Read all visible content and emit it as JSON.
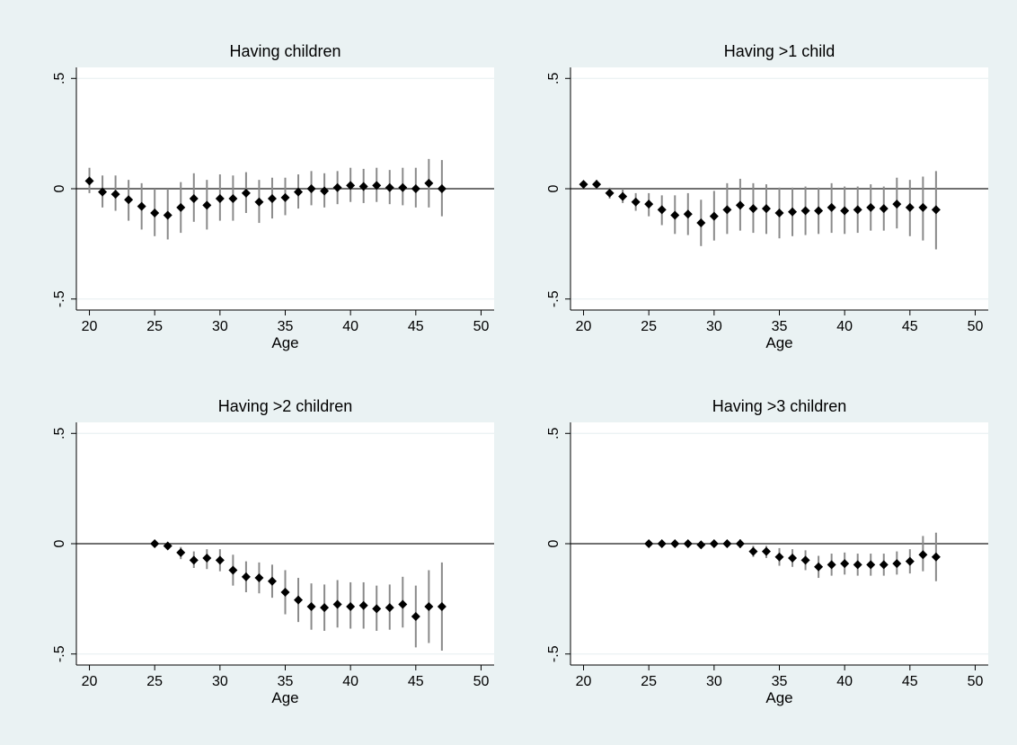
{
  "colors": {
    "background": "#eaf2f3",
    "plot_background": "#ffffff",
    "marker": "#000000",
    "ci_line": "#8a8a8a",
    "grid": "#e6eef0",
    "zero_line": "#1a1a1a"
  },
  "chart_data": [
    {
      "type": "scatter",
      "title": "Having children",
      "xlabel": "Age",
      "ylabel": "",
      "xlim": [
        19,
        51
      ],
      "ylim": [
        -0.55,
        0.55
      ],
      "xticks": [
        20,
        25,
        30,
        35,
        40,
        45,
        50
      ],
      "xtick_labels": [
        "20",
        "25",
        "30",
        "35",
        "40",
        "45",
        "50"
      ],
      "yticks": [
        -0.5,
        0,
        0.5
      ],
      "ytick_labels": [
        "-.5",
        "0",
        ".5"
      ],
      "grid": true,
      "reference_line": 0,
      "series": [
        {
          "x": [
            20,
            21,
            22,
            23,
            24,
            25,
            26,
            27,
            28,
            29,
            30,
            31,
            32,
            33,
            34,
            35,
            36,
            37,
            38,
            39,
            40,
            41,
            42,
            43,
            44,
            45,
            46,
            47
          ],
          "y": [
            0.035,
            -0.015,
            -0.025,
            -0.05,
            -0.08,
            -0.11,
            -0.12,
            -0.085,
            -0.045,
            -0.075,
            -0.045,
            -0.045,
            -0.02,
            -0.06,
            -0.045,
            -0.04,
            -0.015,
            0,
            -0.01,
            0.005,
            0.015,
            0.01,
            0.015,
            0.005,
            0.005,
            0,
            0.025,
            0
          ],
          "lower": [
            -0.02,
            -0.085,
            -0.1,
            -0.145,
            -0.185,
            -0.215,
            -0.23,
            -0.2,
            -0.15,
            -0.185,
            -0.145,
            -0.145,
            -0.11,
            -0.155,
            -0.135,
            -0.12,
            -0.09,
            -0.075,
            -0.085,
            -0.07,
            -0.06,
            -0.065,
            -0.06,
            -0.07,
            -0.075,
            -0.085,
            -0.085,
            -0.125
          ],
          "upper": [
            0.095,
            0.06,
            0.06,
            0.04,
            0.025,
            0,
            0,
            0.03,
            0.07,
            0.04,
            0.065,
            0.06,
            0.075,
            0.04,
            0.05,
            0.05,
            0.065,
            0.08,
            0.07,
            0.08,
            0.095,
            0.09,
            0.095,
            0.085,
            0.095,
            0.095,
            0.135,
            0.13
          ]
        }
      ]
    },
    {
      "type": "scatter",
      "title": "Having >1 child",
      "xlabel": "Age",
      "ylabel": "",
      "xlim": [
        19,
        51
      ],
      "ylim": [
        -0.55,
        0.55
      ],
      "xticks": [
        20,
        25,
        30,
        35,
        40,
        45,
        50
      ],
      "xtick_labels": [
        "20",
        "25",
        "30",
        "35",
        "40",
        "45",
        "50"
      ],
      "yticks": [
        -0.5,
        0,
        0.5
      ],
      "ytick_labels": [
        "-.5",
        "0",
        ".5"
      ],
      "grid": true,
      "reference_line": 0,
      "series": [
        {
          "x": [
            20,
            21,
            22,
            23,
            24,
            25,
            26,
            27,
            28,
            29,
            30,
            31,
            32,
            33,
            34,
            35,
            36,
            37,
            38,
            39,
            40,
            41,
            42,
            43,
            44,
            45,
            46,
            47
          ],
          "y": [
            0.02,
            0.02,
            -0.02,
            -0.035,
            -0.06,
            -0.07,
            -0.095,
            -0.12,
            -0.115,
            -0.155,
            -0.125,
            -0.095,
            -0.075,
            -0.09,
            -0.09,
            -0.11,
            -0.105,
            -0.1,
            -0.1,
            -0.085,
            -0.1,
            -0.095,
            -0.085,
            -0.09,
            -0.07,
            -0.085,
            -0.085,
            -0.095
          ],
          "lower": [
            0.005,
            0,
            -0.045,
            -0.065,
            -0.1,
            -0.125,
            -0.165,
            -0.205,
            -0.21,
            -0.26,
            -0.235,
            -0.205,
            -0.19,
            -0.2,
            -0.205,
            -0.225,
            -0.215,
            -0.21,
            -0.205,
            -0.2,
            -0.205,
            -0.2,
            -0.19,
            -0.19,
            -0.18,
            -0.215,
            -0.235,
            -0.275
          ],
          "upper": [
            0.035,
            0.04,
            0.005,
            0,
            -0.02,
            -0.02,
            -0.03,
            -0.03,
            -0.02,
            -0.05,
            -0.01,
            0.025,
            0.045,
            0.025,
            0.02,
            0.005,
            0.005,
            0.01,
            0.005,
            0.025,
            0.01,
            0.01,
            0.02,
            0.01,
            0.05,
            0.04,
            0.055,
            0.08
          ]
        }
      ]
    },
    {
      "type": "scatter",
      "title": "Having >2 children",
      "xlabel": "Age",
      "ylabel": "",
      "xlim": [
        19,
        51
      ],
      "ylim": [
        -0.55,
        0.55
      ],
      "xticks": [
        20,
        25,
        30,
        35,
        40,
        45,
        50
      ],
      "xtick_labels": [
        "20",
        "25",
        "30",
        "35",
        "40",
        "45",
        "50"
      ],
      "yticks": [
        -0.5,
        0,
        0.5
      ],
      "ytick_labels": [
        "-.5",
        "0",
        ".5"
      ],
      "grid": true,
      "reference_line": 0,
      "series": [
        {
          "x": [
            25,
            26,
            27,
            28,
            29,
            30,
            31,
            32,
            33,
            34,
            35,
            36,
            37,
            38,
            39,
            40,
            41,
            42,
            43,
            44,
            45,
            46,
            47
          ],
          "y": [
            0,
            -0.01,
            -0.04,
            -0.075,
            -0.065,
            -0.075,
            -0.12,
            -0.15,
            -0.155,
            -0.17,
            -0.22,
            -0.255,
            -0.285,
            -0.29,
            -0.275,
            -0.285,
            -0.28,
            -0.295,
            -0.29,
            -0.275,
            -0.33,
            -0.285,
            -0.285
          ],
          "lower": [
            -0.005,
            -0.025,
            -0.07,
            -0.11,
            -0.115,
            -0.125,
            -0.19,
            -0.22,
            -0.225,
            -0.245,
            -0.32,
            -0.355,
            -0.39,
            -0.395,
            -0.38,
            -0.385,
            -0.385,
            -0.395,
            -0.39,
            -0.38,
            -0.47,
            -0.45,
            -0.485
          ],
          "upper": [
            0.005,
            0.005,
            -0.015,
            -0.035,
            -0.025,
            -0.025,
            -0.05,
            -0.08,
            -0.085,
            -0.095,
            -0.12,
            -0.155,
            -0.18,
            -0.185,
            -0.165,
            -0.175,
            -0.175,
            -0.19,
            -0.185,
            -0.15,
            -0.19,
            -0.12,
            -0.085
          ]
        }
      ]
    },
    {
      "type": "scatter",
      "title": "Having >3 children",
      "xlabel": "Age",
      "ylabel": "",
      "xlim": [
        19,
        51
      ],
      "ylim": [
        -0.55,
        0.55
      ],
      "xticks": [
        20,
        25,
        30,
        35,
        40,
        45,
        50
      ],
      "xtick_labels": [
        "20",
        "25",
        "30",
        "35",
        "40",
        "45",
        "50"
      ],
      "yticks": [
        -0.5,
        0,
        0.5
      ],
      "ytick_labels": [
        "-.5",
        "0",
        ".5"
      ],
      "grid": true,
      "reference_line": 0,
      "series": [
        {
          "x": [
            25,
            26,
            27,
            28,
            29,
            30,
            31,
            32,
            33,
            34,
            35,
            36,
            37,
            38,
            39,
            40,
            41,
            42,
            43,
            44,
            45,
            46,
            47
          ],
          "y": [
            0,
            0,
            0,
            0,
            -0.005,
            0,
            0,
            0,
            -0.035,
            -0.035,
            -0.06,
            -0.065,
            -0.075,
            -0.105,
            -0.095,
            -0.09,
            -0.095,
            -0.095,
            -0.095,
            -0.09,
            -0.08,
            -0.05,
            -0.06
          ],
          "lower": [
            -0.005,
            -0.005,
            -0.005,
            -0.005,
            -0.01,
            -0.01,
            -0.01,
            -0.02,
            -0.06,
            -0.065,
            -0.1,
            -0.105,
            -0.12,
            -0.155,
            -0.145,
            -0.14,
            -0.145,
            -0.145,
            -0.145,
            -0.14,
            -0.135,
            -0.125,
            -0.17
          ],
          "upper": [
            0.005,
            0.005,
            0.005,
            0.005,
            0.005,
            0.005,
            0.01,
            0.02,
            -0.01,
            -0.01,
            -0.02,
            -0.025,
            -0.03,
            -0.055,
            -0.045,
            -0.04,
            -0.045,
            -0.045,
            -0.045,
            -0.035,
            -0.025,
            0.035,
            0.05
          ]
        }
      ]
    }
  ]
}
